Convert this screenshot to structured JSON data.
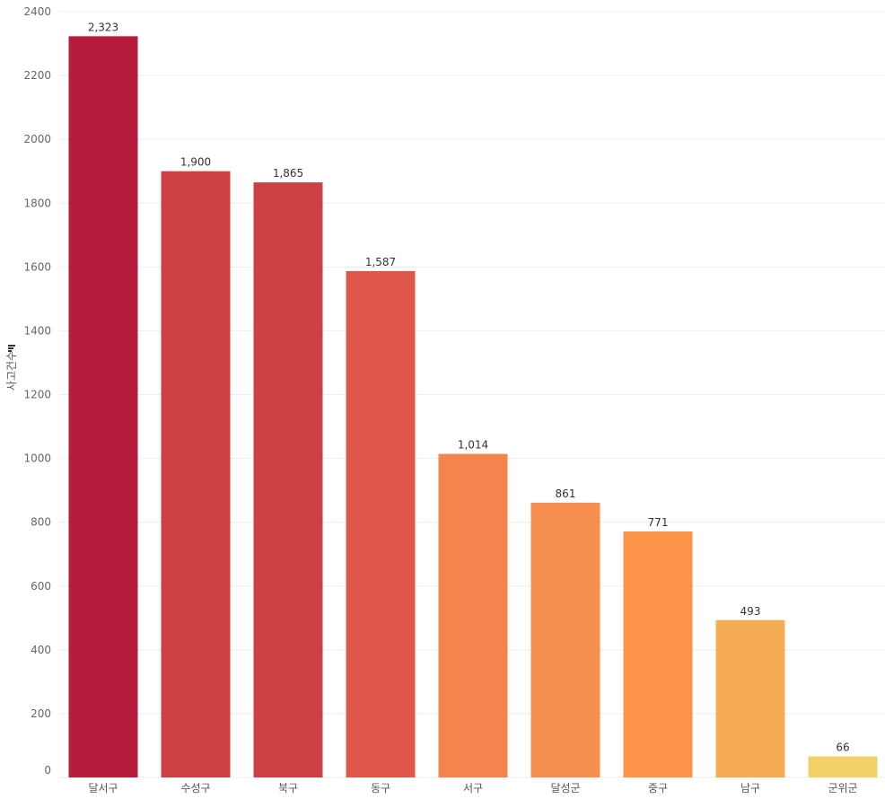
{
  "chart_data": {
    "type": "bar",
    "title": "",
    "xlabel": "",
    "ylabel": "사고건수",
    "ylabel_icon": "sort-bars-icon",
    "ylim": [
      0,
      2400
    ],
    "yticks": [
      0,
      200,
      400,
      600,
      800,
      1000,
      1200,
      1400,
      1600,
      1800,
      2000,
      2200,
      2400
    ],
    "categories": [
      "달서구",
      "수성구",
      "북구",
      "동구",
      "서구",
      "달성군",
      "중구",
      "남구",
      "군위군"
    ],
    "values": [
      2323,
      1900,
      1865,
      1587,
      1014,
      861,
      771,
      493,
      66
    ],
    "value_labels": [
      "2,323",
      "1,900",
      "1,865",
      "1,587",
      "1,014",
      "861",
      "771",
      "493",
      "66"
    ],
    "colors": [
      "#b71c3c",
      "#cd4044",
      "#cd4044",
      "#df5748",
      "#f3844d",
      "#f68e4f",
      "#fb9449",
      "#f6ac52",
      "#f1d167"
    ],
    "grid": true,
    "legend": "none"
  }
}
